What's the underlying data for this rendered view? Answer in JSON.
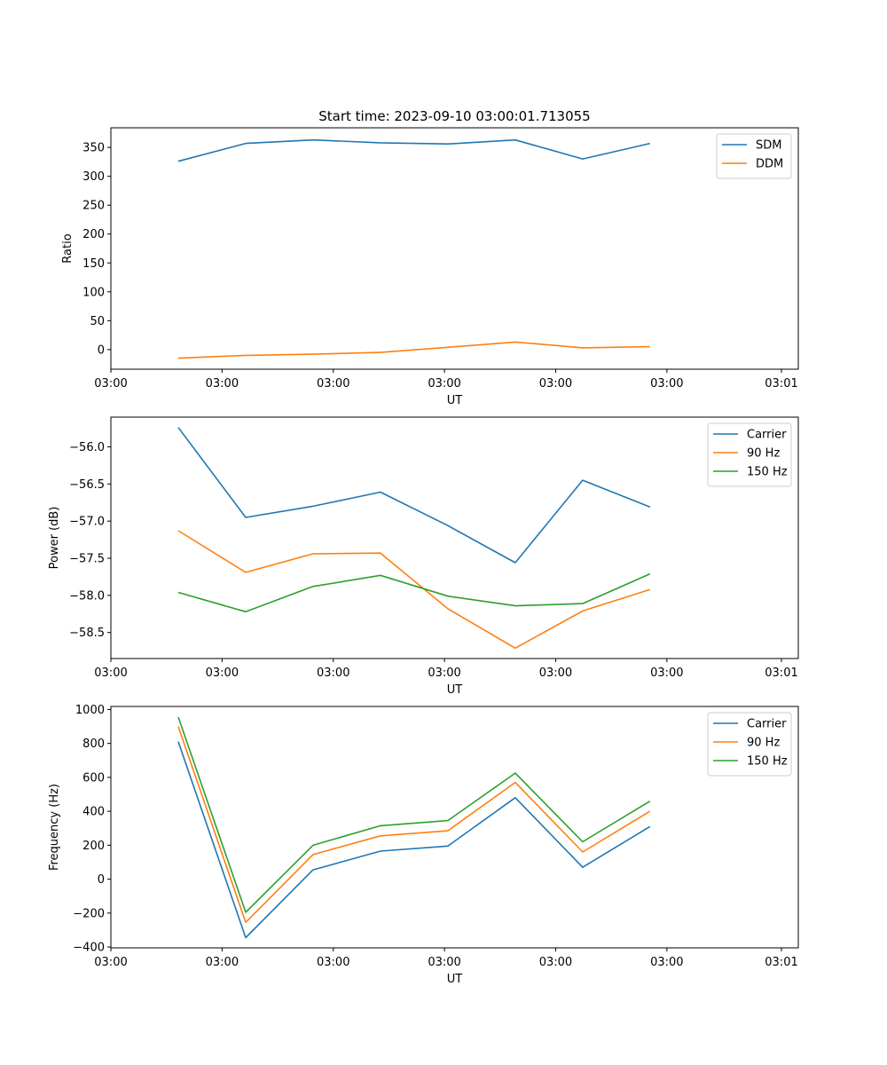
{
  "figure": {
    "title": "Start time: 2023-09-10 03:00:01.713055"
  },
  "colors": {
    "series_1": "#1f77b4",
    "series_2": "#ff7f0e",
    "series_3": "#2ca02c",
    "axes": "#000000",
    "legend_border": "#cccccc",
    "background": "#ffffff"
  },
  "chart_data": [
    {
      "type": "line",
      "title": "Start time: 2023-09-10 03:00:01.713055",
      "xlabel": "UT",
      "ylabel": "Ratio",
      "x": [
        1,
        2,
        3,
        4,
        5,
        6,
        7,
        8
      ],
      "xlim": [
        0,
        10.2
      ],
      "xticks": [
        0,
        1.65,
        3.3,
        4.95,
        6.6,
        8.25,
        9.95
      ],
      "xtick_labels": [
        "03:00",
        "03:00",
        "03:00",
        "03:00",
        "03:00",
        "03:00",
        "03:01"
      ],
      "ylim": [
        -34,
        384
      ],
      "yticks": [
        0,
        50,
        100,
        150,
        200,
        250,
        300,
        350
      ],
      "ytick_labels": [
        "0",
        "50",
        "100",
        "150",
        "200",
        "250",
        "300",
        "350"
      ],
      "legend_position": "top-right",
      "series": [
        {
          "name": "SDM",
          "values": [
            326,
            357,
            363,
            358,
            356,
            363,
            330,
            357
          ]
        },
        {
          "name": "DDM",
          "values": [
            -15,
            -10,
            -8,
            -5,
            4,
            13,
            3,
            5
          ]
        }
      ]
    },
    {
      "type": "line",
      "title": "",
      "xlabel": "UT",
      "ylabel": "Power (dB)",
      "x": [
        1,
        2,
        3,
        4,
        5,
        6,
        7,
        8
      ],
      "xlim": [
        0,
        10.2
      ],
      "xticks": [
        0,
        1.65,
        3.3,
        4.95,
        6.6,
        8.25,
        9.95
      ],
      "xtick_labels": [
        "03:00",
        "03:00",
        "03:00",
        "03:00",
        "03:00",
        "03:00",
        "03:01"
      ],
      "ylim": [
        -58.85,
        -55.6
      ],
      "yticks": [
        -56.0,
        -56.5,
        -57.0,
        -57.5,
        -58.0,
        -58.5
      ],
      "ytick_labels": [
        "−56.0",
        "−56.5",
        "−57.0",
        "−57.5",
        "−58.0",
        "−58.5"
      ],
      "legend_position": "top-right",
      "series": [
        {
          "name": "Carrier",
          "values": [
            -55.74,
            -56.95,
            -56.8,
            -56.61,
            -57.06,
            -57.56,
            -56.45,
            -56.81
          ]
        },
        {
          "name": "90 Hz",
          "values": [
            -57.13,
            -57.69,
            -57.44,
            -57.43,
            -58.18,
            -58.71,
            -58.21,
            -57.92
          ]
        },
        {
          "name": "150 Hz",
          "values": [
            -57.96,
            -58.22,
            -57.88,
            -57.73,
            -58.01,
            -58.14,
            -58.11,
            -57.71
          ]
        }
      ]
    },
    {
      "type": "line",
      "title": "",
      "xlabel": "UT",
      "ylabel": "Frequency (Hz)",
      "x": [
        1,
        2,
        3,
        4,
        5,
        6,
        7,
        8
      ],
      "xlim": [
        0,
        10.2
      ],
      "xticks": [
        0,
        1.65,
        3.3,
        4.95,
        6.6,
        8.25,
        9.95
      ],
      "xtick_labels": [
        "03:00",
        "03:00",
        "03:00",
        "03:00",
        "03:00",
        "03:00",
        "03:01"
      ],
      "ylim": [
        -405,
        1018
      ],
      "yticks": [
        -400,
        -200,
        0,
        200,
        400,
        600,
        800,
        1000
      ],
      "ytick_labels": [
        "−400",
        "−200",
        "0",
        "200",
        "400",
        "600",
        "800",
        "1000"
      ],
      "legend_position": "top-right",
      "series": [
        {
          "name": "Carrier",
          "values": [
            810,
            -345,
            55,
            165,
            195,
            480,
            70,
            310
          ]
        },
        {
          "name": "90 Hz",
          "values": [
            900,
            -255,
            145,
            255,
            285,
            570,
            160,
            400
          ]
        },
        {
          "name": "150 Hz",
          "values": [
            955,
            -195,
            200,
            315,
            345,
            625,
            220,
            460
          ]
        }
      ]
    }
  ]
}
